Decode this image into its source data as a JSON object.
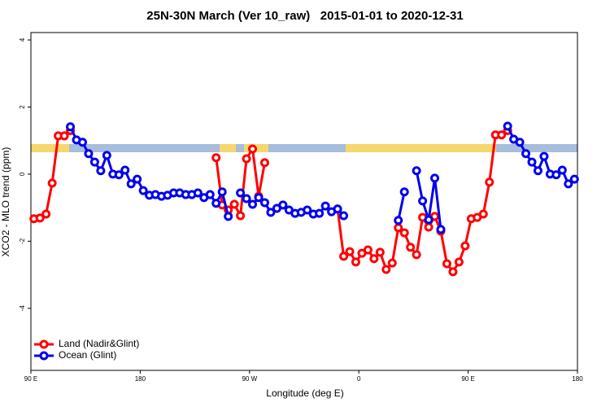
{
  "chart_data": {
    "type": "line",
    "title": "25N-30N March (Ver 10_raw)   2015-01-01 to 2020-12-31",
    "x_label": "Longitude (deg E)",
    "y_label": "XCO2 - MLO trend (ppm)",
    "x": [
      92.5,
      97.5,
      102.5,
      107.5,
      112.5,
      117.5,
      122.5,
      127.5,
      132.5,
      137.5,
      142.5,
      147.5,
      152.5,
      157.5,
      162.5,
      167.5,
      172.5,
      177.5,
      182.5,
      187.5,
      192.5,
      197.5,
      202.5,
      207.5,
      212.5,
      217.5,
      222.5,
      227.5,
      232.5,
      237.5,
      242.5,
      247.5,
      252.5,
      257.5,
      262.5,
      267.5,
      272.5,
      277.5,
      282.5,
      287.5,
      292.5,
      297.5,
      302.5,
      307.5,
      312.5,
      317.5,
      322.5,
      327.5,
      332.5,
      337.5,
      342.5,
      347.5,
      352.5,
      357.5,
      362.5,
      367.5,
      372.5,
      377.5,
      382.5,
      387.5,
      392.5,
      397.5,
      402.5,
      407.5,
      412.5,
      417.5,
      422.5,
      427.5,
      432.5,
      437.5,
      442.5,
      447.5,
      452.5,
      457.5,
      462.5,
      467.5,
      472.5,
      477.5,
      482.5,
      487.5,
      492.5,
      497.5,
      502.5,
      507.5,
      512.5,
      517.5,
      522.5,
      527.5,
      532.5,
      537.5
    ],
    "series": [
      {
        "name": "Land (Nadir&Glint)",
        "color": "#ff0000",
        "values": [
          -1.33,
          -1.31,
          -1.19,
          -0.27,
          1.14,
          1.14,
          1.3,
          null,
          null,
          null,
          null,
          null,
          null,
          null,
          null,
          null,
          null,
          null,
          null,
          null,
          null,
          null,
          null,
          null,
          null,
          null,
          null,
          null,
          null,
          null,
          0.49,
          -0.92,
          -1.07,
          -0.9,
          -1.24,
          0.46,
          0.75,
          -0.66,
          0.34,
          null,
          null,
          null,
          null,
          null,
          null,
          null,
          null,
          null,
          null,
          null,
          -1.04,
          -2.45,
          -2.31,
          -2.62,
          -2.36,
          -2.26,
          -2.52,
          -2.33,
          -2.84,
          -2.65,
          -1.6,
          -1.75,
          -2.18,
          -2.4,
          -1.29,
          -1.58,
          -1.26,
          -1.7,
          -2.67,
          -2.91,
          -2.62,
          -2.14,
          -1.33,
          -1.29,
          -1.19,
          -0.24,
          1.17,
          1.17,
          1.3,
          null,
          null,
          null,
          null,
          null,
          null,
          null,
          null,
          null,
          null,
          null
        ]
      },
      {
        "name": "Ocean (Glint)",
        "color": "#0000ee",
        "values": [
          null,
          null,
          null,
          null,
          null,
          null,
          1.41,
          1.02,
          0.95,
          0.61,
          0.36,
          0.1,
          0.56,
          0,
          -0.02,
          0.12,
          -0.29,
          -0.15,
          -0.49,
          -0.63,
          -0.61,
          -0.66,
          -0.63,
          -0.56,
          -0.56,
          -0.61,
          -0.61,
          -0.56,
          -0.7,
          -0.61,
          -0.87,
          -0.53,
          -1.26,
          null,
          -0.56,
          -0.73,
          -0.9,
          -0.7,
          -0.85,
          -1.14,
          -1.02,
          -0.92,
          -1.07,
          -1.17,
          -1.14,
          -1.07,
          -1.19,
          -1.17,
          -0.95,
          -1.12,
          -1.04,
          -1.24,
          null,
          null,
          null,
          null,
          null,
          null,
          null,
          null,
          -1.38,
          -0.53,
          null,
          0.1,
          -0.8,
          -1.36,
          -0.12,
          -1.65,
          null,
          null,
          null,
          null,
          null,
          null,
          null,
          null,
          null,
          null,
          1.43,
          1.04,
          0.95,
          0.61,
          0.36,
          0.1,
          0.53,
          0,
          -0.02,
          0.12,
          -0.29,
          -0.15
        ]
      }
    ],
    "xlim": [
      90,
      540
    ],
    "xticks": [
      {
        "value": 90,
        "label": "90 E"
      },
      180,
      {
        "value": 270,
        "label": "90 W"
      },
      {
        "value": 360,
        "label": "0"
      },
      {
        "value": 450,
        "label": "90 E"
      },
      {
        "value": 540,
        "label": "180"
      }
    ],
    "ylim": [
      -5.85,
      4.22
    ],
    "yticks": [
      -4,
      -2,
      0,
      2,
      4
    ],
    "legend": "lower left"
  }
}
